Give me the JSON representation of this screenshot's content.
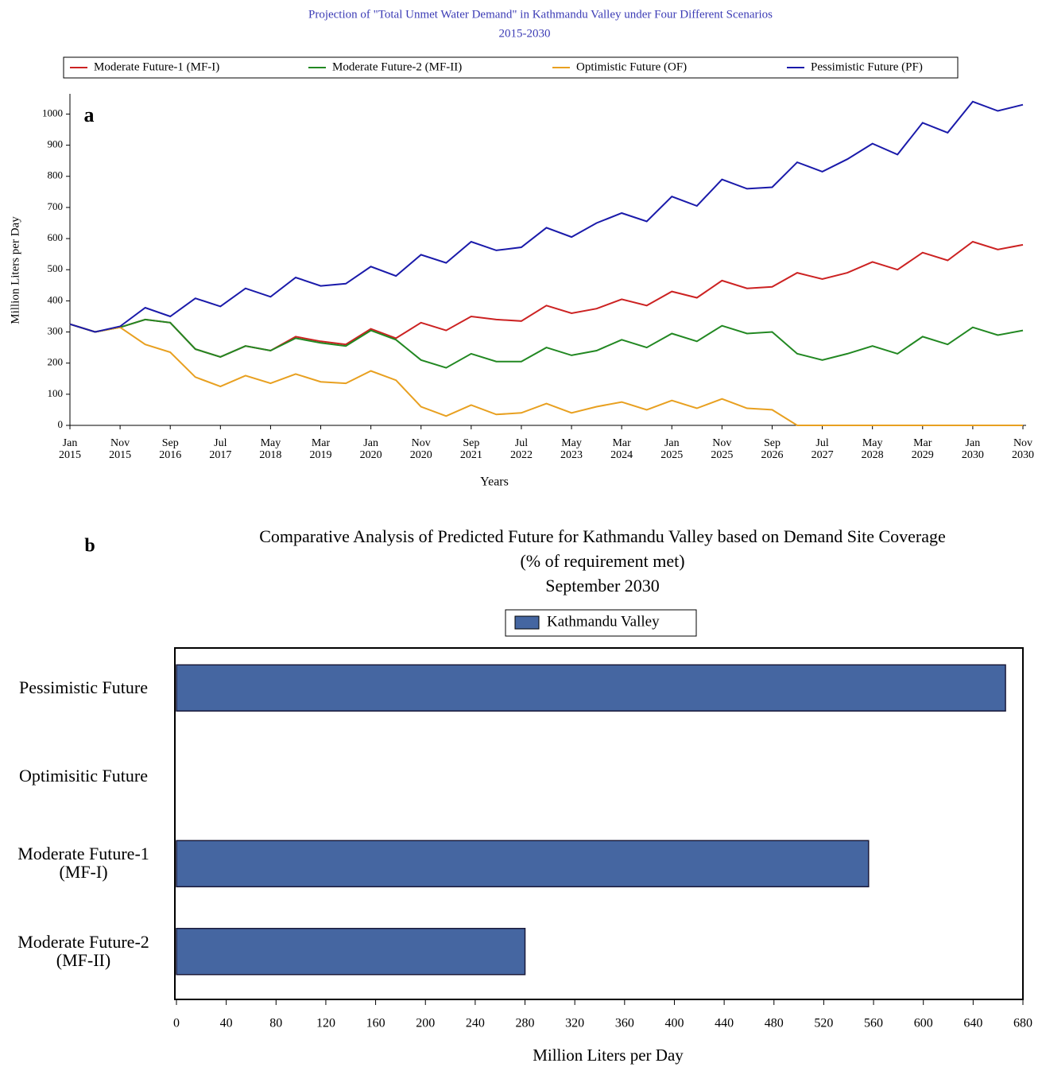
{
  "chart_data": [
    {
      "type": "line",
      "title": "Projection of \"Total Unmet Water Demand\" in Kathmandu Valley under Four Different Scenarios",
      "subtitle": "2015-2030",
      "panel_label": "a",
      "x_label": "Years",
      "y_label": "Million Liters per Day",
      "x": [
        "2015-01",
        "2015-06",
        "2015-11",
        "2016-04",
        "2016-09",
        "2017-02",
        "2017-07",
        "2017-12",
        "2018-05",
        "2018-10",
        "2019-03",
        "2019-08",
        "2020-01",
        "2020-06",
        "2020-11",
        "2021-04",
        "2021-09",
        "2022-02",
        "2022-07",
        "2022-12",
        "2023-05",
        "2023-10",
        "2024-03",
        "2024-08",
        "2025-01",
        "2025-06",
        "2025-11",
        "2026-04",
        "2026-09",
        "2027-02",
        "2027-07",
        "2027-12",
        "2028-05",
        "2028-10",
        "2029-03",
        "2029-08",
        "2030-01",
        "2030-06",
        "2030-11"
      ],
      "series": [
        {
          "name": "Moderate Future-1 (MF-I)",
          "color": "#cc2222",
          "values": [
            325,
            300,
            315,
            340,
            330,
            245,
            220,
            255,
            240,
            285,
            270,
            260,
            310,
            280,
            330,
            305,
            350,
            340,
            335,
            385,
            360,
            375,
            405,
            385,
            430,
            410,
            465,
            440,
            445,
            490,
            470,
            490,
            525,
            500,
            555,
            530,
            590,
            565,
            580
          ]
        },
        {
          "name": "Moderate Future-2 (MF-II)",
          "color": "#228822",
          "values": [
            325,
            300,
            315,
            340,
            330,
            245,
            220,
            255,
            240,
            280,
            265,
            255,
            305,
            275,
            210,
            185,
            230,
            205,
            205,
            250,
            225,
            240,
            275,
            250,
            295,
            270,
            320,
            295,
            300,
            230,
            210,
            230,
            255,
            230,
            285,
            260,
            315,
            290,
            305
          ]
        },
        {
          "name": "Optimistic Future (OF)",
          "color": "#e8a020",
          "values": [
            325,
            300,
            315,
            260,
            235,
            155,
            125,
            160,
            135,
            165,
            140,
            135,
            175,
            145,
            60,
            30,
            65,
            35,
            40,
            70,
            40,
            60,
            75,
            50,
            80,
            55,
            85,
            55,
            50,
            0,
            0,
            0,
            0,
            0,
            0,
            0,
            0,
            0,
            0
          ]
        },
        {
          "name": "Pessimistic Future (PF)",
          "color": "#1a1aaa",
          "values": [
            325,
            300,
            318,
            378,
            350,
            408,
            382,
            440,
            413,
            475,
            448,
            455,
            510,
            480,
            548,
            522,
            590,
            562,
            572,
            635,
            605,
            650,
            682,
            655,
            735,
            705,
            790,
            760,
            765,
            845,
            815,
            855,
            905,
            870,
            972,
            940,
            1040,
            1010,
            1030
          ]
        }
      ],
      "xlim": [
        "2015-01",
        "2030-11"
      ],
      "xticks": [
        {
          "value": "2015-01",
          "label": "Jan 2015"
        },
        {
          "value": "2015-11",
          "label": "Nov 2015"
        },
        {
          "value": "2016-09",
          "label": "Sep 2016"
        },
        {
          "value": "2017-07",
          "label": "Jul 2017"
        },
        {
          "value": "2018-05",
          "label": "May 2018"
        },
        {
          "value": "2019-03",
          "label": "Mar 2019"
        },
        {
          "value": "2020-01",
          "label": "Jan 2020"
        },
        {
          "value": "2020-11",
          "label": "Nov 2020"
        },
        {
          "value": "2021-09",
          "label": "Sep 2021"
        },
        {
          "value": "2022-07",
          "label": "Jul 2022"
        },
        {
          "value": "2023-05",
          "label": "May 2023"
        },
        {
          "value": "2024-03",
          "label": "Mar 2024"
        },
        {
          "value": "2025-01",
          "label": "Jan 2025"
        },
        {
          "value": "2025-11",
          "label": "Nov 2025"
        },
        {
          "value": "2026-09",
          "label": "Sep 2026"
        },
        {
          "value": "2027-07",
          "label": "Jul 2027"
        },
        {
          "value": "2028-05",
          "label": "May 2028"
        },
        {
          "value": "2029-03",
          "label": "Mar 2029"
        },
        {
          "value": "2030-01",
          "label": "Jan 2030"
        },
        {
          "value": "2030-11",
          "label": "Nov 2030"
        }
      ],
      "ylim": [
        0,
        1065
      ],
      "yticks": [
        0,
        100,
        200,
        300,
        400,
        500,
        600,
        700,
        800,
        900,
        1000
      ],
      "legend": "top"
    },
    {
      "type": "hbar",
      "title": [
        "Comparative Analysis of Predicted Future for Kathmandu Valley based on Demand Site Coverage",
        "(% of requirement met)",
        "September 2030"
      ],
      "panel_label": "b",
      "x_label": "Million Liters per Day",
      "categories": [
        "Pessimistic Future",
        "Optimisitic Future",
        "Moderate Future-1 (MF-I)",
        "Moderate Future-2 (MF-II)"
      ],
      "series": [
        {
          "name": "Kathmandu Valley",
          "color": "#4566a1",
          "values": [
            666,
            0,
            556,
            280
          ]
        }
      ],
      "xlim": [
        0,
        680
      ],
      "xticks": [
        0,
        40,
        80,
        120,
        160,
        200,
        240,
        280,
        320,
        360,
        400,
        440,
        480,
        520,
        560,
        600,
        640,
        680
      ],
      "legend": "top"
    }
  ]
}
